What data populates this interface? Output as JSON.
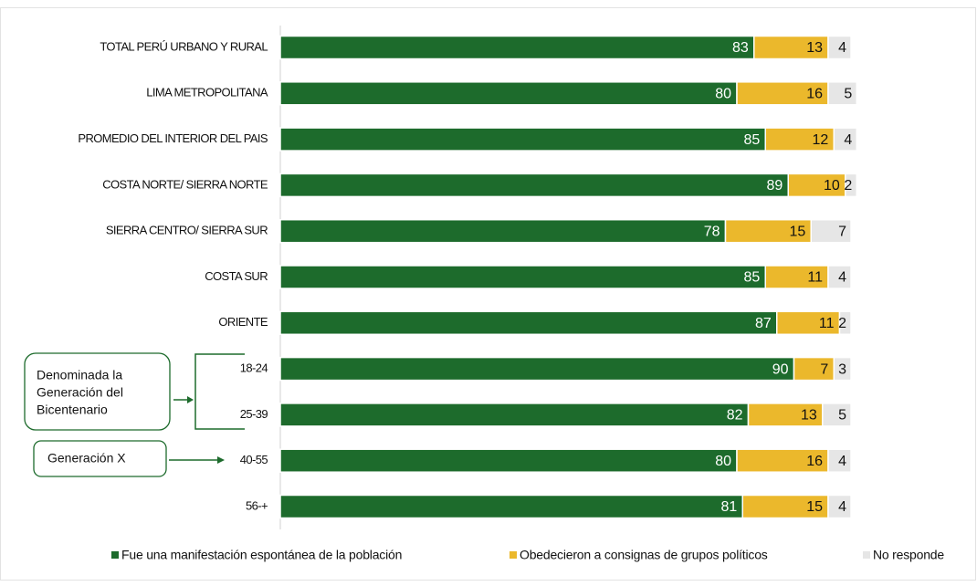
{
  "chart_data": {
    "type": "stacked-barh",
    "categories": [
      "TOTAL PERÚ URBANO Y RURAL",
      "LIMA METROPOLITANA",
      "PROMEDIO DEL INTERIOR DEL PAIS",
      "COSTA NORTE/ SIERRA NORTE",
      "SIERRA CENTRO/ SIERRA SUR",
      "COSTA SUR",
      "ORIENTE",
      "18-24",
      "25-39",
      "40-55",
      "56-+"
    ],
    "series": [
      {
        "name": "Fue una manifestación espontánea de la población",
        "color": "#1d6b2c",
        "values": [
          83,
          80,
          85,
          89,
          78,
          85,
          87,
          90,
          82,
          80,
          81
        ]
      },
      {
        "name": "Obedecieron a consignas de grupos políticos",
        "color": "#ebb82c",
        "values": [
          13,
          16,
          12,
          10,
          15,
          11,
          11,
          7,
          13,
          16,
          15
        ]
      },
      {
        "name": "No responde",
        "color": "#e6e6e6",
        "values": [
          4,
          5,
          4,
          2,
          7,
          4,
          2,
          3,
          5,
          4,
          4
        ]
      }
    ],
    "xlim": [
      0,
      100
    ],
    "annotations": [
      {
        "lines": [
          "Denominada la",
          "Generación del",
          "Bicentenario"
        ]
      },
      {
        "lines": [
          "Generación X"
        ]
      }
    ]
  }
}
